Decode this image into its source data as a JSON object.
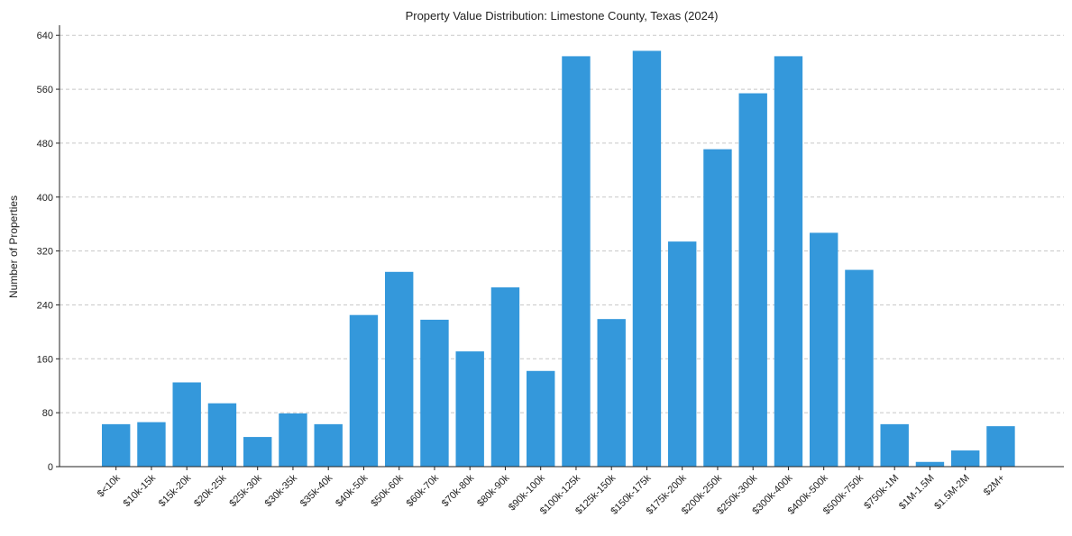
{
  "chart_data": {
    "type": "bar",
    "title": "Property Value Distribution: Limestone County, Texas (2024)",
    "xlabel": "",
    "ylabel": "Number of Properties",
    "ylim": [
      0,
      655
    ],
    "yticks": [
      0,
      80,
      160,
      240,
      320,
      400,
      480,
      560,
      640
    ],
    "grid": "y-dashed",
    "bar_color": "#3498db",
    "categories": [
      "$<10k",
      "$10k-15k",
      "$15k-20k",
      "$20k-25k",
      "$25k-30k",
      "$30k-35k",
      "$35k-40k",
      "$40k-50k",
      "$50k-60k",
      "$60k-70k",
      "$70k-80k",
      "$80k-90k",
      "$90k-100k",
      "$100k-125k",
      "$125k-150k",
      "$150k-175k",
      "$175k-200k",
      "$200k-250k",
      "$250k-300k",
      "$300k-400k",
      "$400k-500k",
      "$500k-750k",
      "$750k-1M",
      "$1M-1.5M",
      "$1.5M-2M",
      "$2M+"
    ],
    "values": [
      63,
      66,
      125,
      94,
      44,
      79,
      63,
      225,
      289,
      218,
      171,
      266,
      142,
      609,
      219,
      617,
      334,
      471,
      554,
      609,
      347,
      292,
      63,
      7,
      24,
      60
    ]
  }
}
